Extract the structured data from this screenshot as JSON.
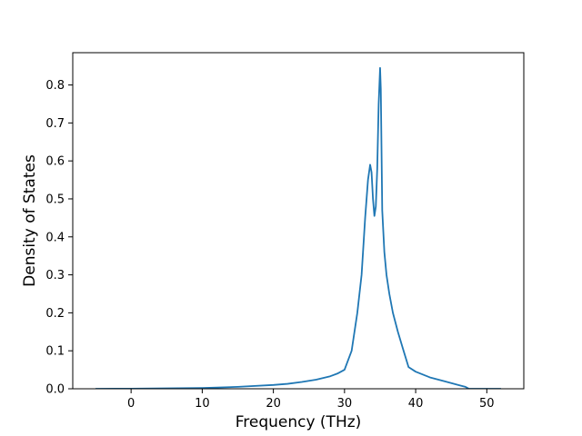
{
  "chart_data": {
    "type": "line",
    "title": "",
    "xlabel": "Frequency (THz)",
    "ylabel": "Density of States",
    "xlim": [
      -8.2,
      55.2
    ],
    "ylim": [
      0.0,
      0.885
    ],
    "xticks": [
      0,
      10,
      20,
      30,
      40,
      50
    ],
    "yticks": [
      0.0,
      0.1,
      0.2,
      0.3,
      0.4,
      0.5,
      0.6,
      0.7,
      0.8
    ],
    "xtick_labels": [
      "0",
      "10",
      "20",
      "30",
      "40",
      "50"
    ],
    "ytick_labels": [
      "0.0",
      "0.1",
      "0.2",
      "0.3",
      "0.4",
      "0.5",
      "0.6",
      "0.7",
      "0.8"
    ],
    "grid": false,
    "legend": null,
    "line_color": "#1f77b4",
    "series": [
      {
        "x": [
          -5.0,
          0.0,
          5.0,
          10.0,
          15.0,
          20.0,
          22.0,
          24.0,
          26.0,
          28.0,
          29.0,
          30.0,
          31.0,
          31.8,
          32.4,
          32.9,
          33.3,
          33.6,
          33.8,
          34.0,
          34.2,
          34.4,
          34.6,
          34.8,
          35.0,
          35.1,
          35.3,
          35.6,
          35.9,
          36.3,
          36.8,
          37.5,
          38.3,
          39.0,
          40.0,
          42.0,
          44.0,
          46.0,
          47.0,
          47.5,
          48.0,
          52.0
        ],
        "y": [
          0.0,
          0.0003,
          0.001,
          0.002,
          0.005,
          0.01,
          0.013,
          0.018,
          0.024,
          0.033,
          0.04,
          0.05,
          0.1,
          0.2,
          0.3,
          0.45,
          0.55,
          0.59,
          0.57,
          0.5,
          0.455,
          0.48,
          0.58,
          0.75,
          0.845,
          0.79,
          0.47,
          0.36,
          0.3,
          0.25,
          0.2,
          0.15,
          0.1,
          0.057,
          0.045,
          0.03,
          0.02,
          0.01,
          0.005,
          0.0,
          0.0,
          0.0
        ]
      }
    ]
  }
}
